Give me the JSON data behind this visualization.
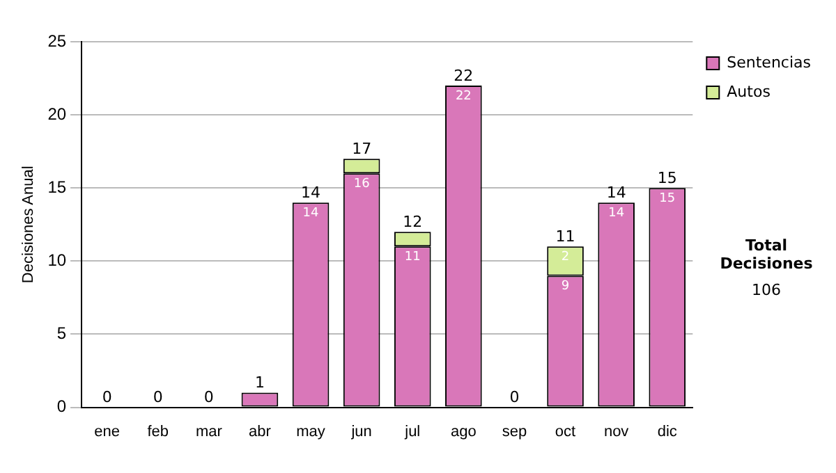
{
  "chart_data": {
    "type": "bar",
    "stacked": true,
    "ylabel": "Decisiones Anual",
    "categories": [
      "ene",
      "feb",
      "mar",
      "abr",
      "may",
      "jun",
      "jul",
      "ago",
      "sep",
      "oct",
      "nov",
      "dic"
    ],
    "series": [
      {
        "name": "Sentencias",
        "color": "#d977b9",
        "values": [
          0,
          0,
          0,
          1,
          14,
          16,
          11,
          22,
          0,
          9,
          14,
          15
        ],
        "value_labels": [
          null,
          null,
          null,
          null,
          "14",
          "16",
          "11",
          "22",
          null,
          "9",
          "14",
          "15"
        ]
      },
      {
        "name": "Autos",
        "color": "#d4ec98",
        "values": [
          0,
          0,
          0,
          0,
          0,
          1,
          1,
          0,
          0,
          2,
          0,
          0
        ],
        "value_labels": [
          null,
          null,
          null,
          null,
          null,
          null,
          null,
          null,
          null,
          "2",
          null,
          null
        ]
      }
    ],
    "totals": [
      "0",
      "0",
      "0",
      "1",
      "14",
      "17",
      "12",
      "22",
      "0",
      "11",
      "14",
      "15"
    ],
    "ylim": [
      0,
      25
    ],
    "yticks": [
      0,
      5,
      10,
      15,
      20,
      25
    ],
    "grid": "y",
    "legend": "right",
    "annotations": [
      "Total Decisiones",
      "106"
    ]
  }
}
